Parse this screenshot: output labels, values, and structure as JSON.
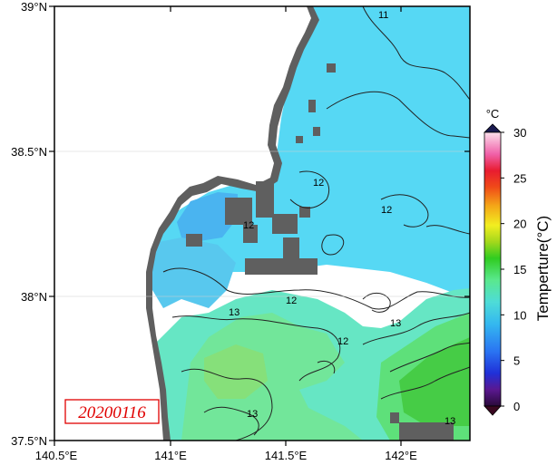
{
  "map": {
    "lat_labels": [
      "39°N",
      "38.5°N",
      "38°N",
      "37.5°N"
    ],
    "lon_labels": [
      "140.5°E",
      "141°E",
      "141.5°E",
      "142°E"
    ],
    "date_stamp": "20200116",
    "contour_labels": [
      "11",
      "12",
      "12",
      "12",
      "12",
      "13",
      "13",
      "13",
      "13",
      "12"
    ]
  },
  "colorbar": {
    "unit": "°C",
    "title": "Temperture(°C)",
    "ticks": [
      "0",
      "5",
      "10",
      "15",
      "20",
      "25",
      "30"
    ],
    "range": [
      0,
      30
    ]
  },
  "colors": {
    "sea_cold": "#56d8f4",
    "sea_mid": "#66e6d8",
    "sea_warm": "#6ee6a0",
    "sea_warmest": "#4ed24e",
    "land": "#5f5f5f",
    "date_box_border": "#e00000"
  }
}
